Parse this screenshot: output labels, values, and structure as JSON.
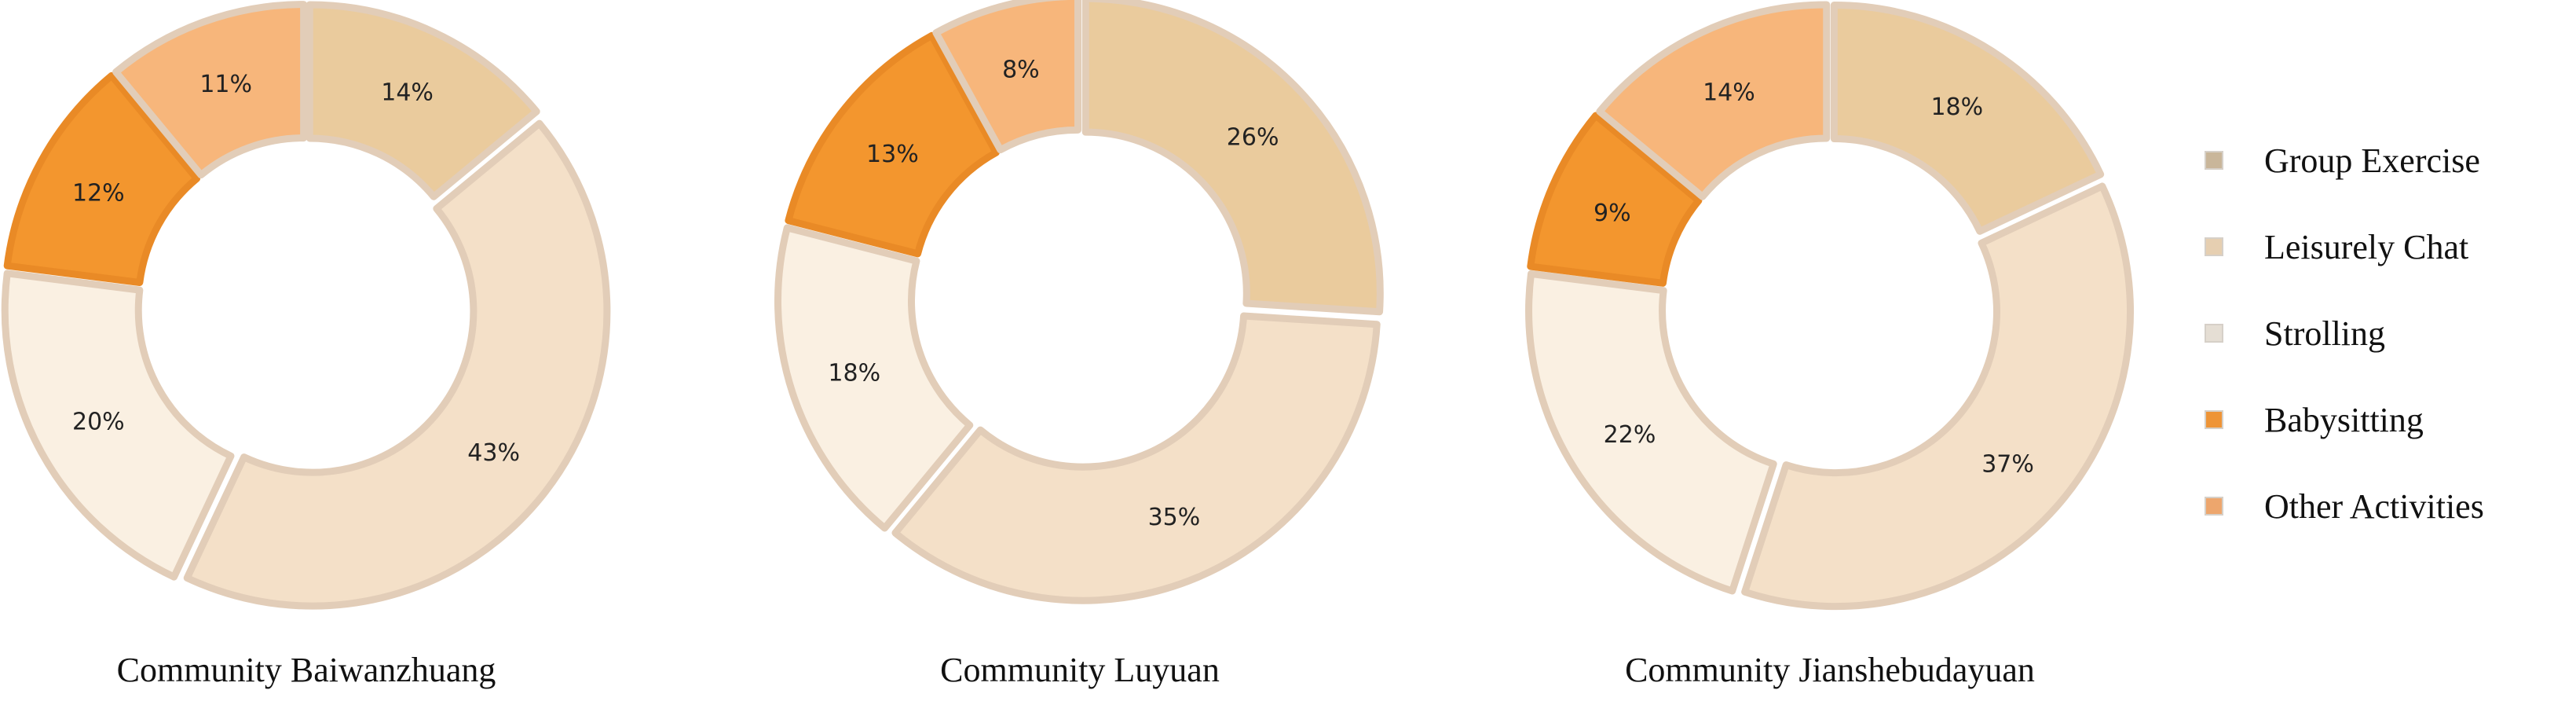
{
  "chart_data": [
    {
      "type": "pie",
      "subtype": "donut",
      "title": "Community Baiwanzhuang",
      "categories": [
        "Group Exercise",
        "Leisurely Chat",
        "Strolling",
        "Babysitting",
        "Other Activities"
      ],
      "values": [
        14,
        43,
        20,
        12,
        11
      ],
      "labels": [
        "14%",
        "43%",
        "20%",
        "12%",
        "11%"
      ]
    },
    {
      "type": "pie",
      "subtype": "donut",
      "title": "Community Luyuan",
      "categories": [
        "Group Exercise",
        "Leisurely Chat",
        "Strolling",
        "Babysitting",
        "Other Activities"
      ],
      "values": [
        26,
        35,
        18,
        13,
        8
      ],
      "labels": [
        "26%",
        "35%",
        "18%",
        "13%",
        "8%"
      ]
    },
    {
      "type": "pie",
      "subtype": "donut",
      "title": "Community Jianshebudayuan",
      "categories": [
        "Group Exercise",
        "Leisurely Chat",
        "Strolling",
        "Babysitting",
        "Other Activities"
      ],
      "values": [
        18,
        37,
        22,
        9,
        14
      ],
      "labels": [
        "18%",
        "37%",
        "22%",
        "9%",
        "14%"
      ]
    }
  ],
  "legend": {
    "position": "right",
    "items": [
      {
        "label": "Group Exercise",
        "color": "#EACB9D",
        "swatch": "#C9B69A"
      },
      {
        "label": "Leisurely Chat",
        "color": "#F4E0C8",
        "swatch": "#E6CFB1"
      },
      {
        "label": "Strolling",
        "color": "#FAF0E2",
        "swatch": "#E5DED4"
      },
      {
        "label": "Babysitting",
        "color": "#F3962E",
        "swatch": "#EE9436"
      },
      {
        "label": "Other Activities",
        "color": "#F7B67B",
        "swatch": "#EDA66D"
      }
    ]
  },
  "colors": {
    "slice_border": "#E2CDB8",
    "babysitting_border": "#E98A26"
  }
}
